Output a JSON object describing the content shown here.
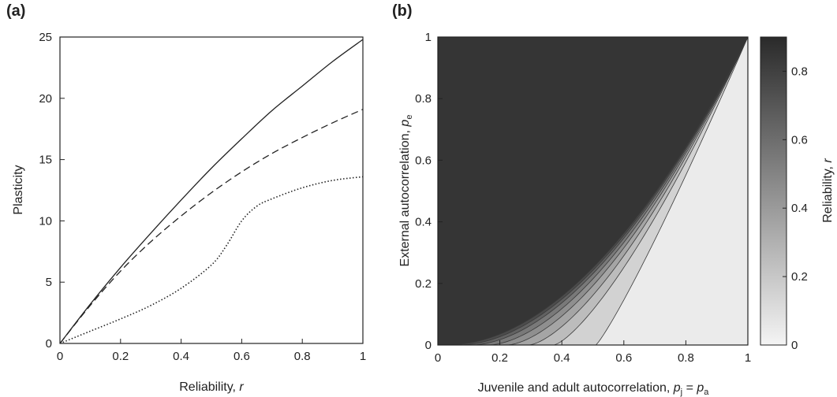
{
  "chart_data": [
    {
      "panel": "(a)",
      "type": "line",
      "xlabel": "Reliability, ",
      "xlabel_var": "r",
      "ylabel": "Plasticity",
      "xlim": [
        0,
        1
      ],
      "ylim": [
        0,
        25
      ],
      "xticks": [
        "0",
        "0.2",
        "0.4",
        "0.6",
        "0.8",
        "1"
      ],
      "yticks": [
        "0",
        "5",
        "10",
        "15",
        "20",
        "25"
      ],
      "grid": false,
      "series": [
        {
          "style": "solid",
          "x": [
            0,
            0.1,
            0.2,
            0.3,
            0.4,
            0.5,
            0.6,
            0.7,
            0.8,
            0.9,
            1.0
          ],
          "y": [
            0,
            3.2,
            6.2,
            9.0,
            11.7,
            14.3,
            16.7,
            19.0,
            21.0,
            23.0,
            24.8
          ]
        },
        {
          "style": "dashed",
          "x": [
            0,
            0.1,
            0.2,
            0.3,
            0.4,
            0.5,
            0.6,
            0.7,
            0.8,
            0.9,
            1.0
          ],
          "y": [
            0,
            3.1,
            5.9,
            8.3,
            10.4,
            12.3,
            14.0,
            15.5,
            16.8,
            18.0,
            19.1
          ]
        },
        {
          "style": "dotted",
          "x": [
            0,
            0.1,
            0.2,
            0.3,
            0.4,
            0.5,
            0.55,
            0.6,
            0.65,
            0.7,
            0.8,
            0.9,
            1.0
          ],
          "y": [
            0,
            1.0,
            2.0,
            3.1,
            4.5,
            6.4,
            8.0,
            10.0,
            11.2,
            11.8,
            12.7,
            13.3,
            13.6
          ]
        }
      ]
    },
    {
      "panel": "(b)",
      "type": "heatmap",
      "subtype": "filled-contour",
      "xlabel": "Juvenile and adult autocorrelation, ",
      "xlabel_var1": "p",
      "xlabel_sub1": "j",
      "xlabel_eq": " = ",
      "xlabel_var2": "p",
      "xlabel_sub2": "a",
      "ylabel": "External autocorrelation, ",
      "ylabel_var": "p",
      "ylabel_sub": "e",
      "xlim": [
        0,
        1
      ],
      "ylim": [
        0,
        1
      ],
      "xticks": [
        "0",
        "0.2",
        "0.4",
        "0.6",
        "0.8",
        "1"
      ],
      "yticks": [
        "0",
        "0.2",
        "0.4",
        "0.6",
        "0.8",
        "1"
      ],
      "colorbar": {
        "label": "Reliability, ",
        "label_var": "r",
        "range": [
          0,
          0.9
        ],
        "ticks": [
          "0",
          "0.2",
          "0.4",
          "0.6",
          "0.8"
        ],
        "tick_values": [
          0,
          0.2,
          0.4,
          0.6,
          0.8
        ],
        "color_low": "#f4f4f4",
        "color_high": "#2a2a2a"
      },
      "contour_levels": [
        0.1,
        0.2,
        0.3,
        0.4,
        0.5,
        0.6,
        0.7,
        0.8
      ],
      "bottom_intercepts_x": [
        0.51,
        0.375,
        0.295,
        0.225,
        0.165,
        0.11,
        0.07,
        0.035
      ]
    }
  ]
}
